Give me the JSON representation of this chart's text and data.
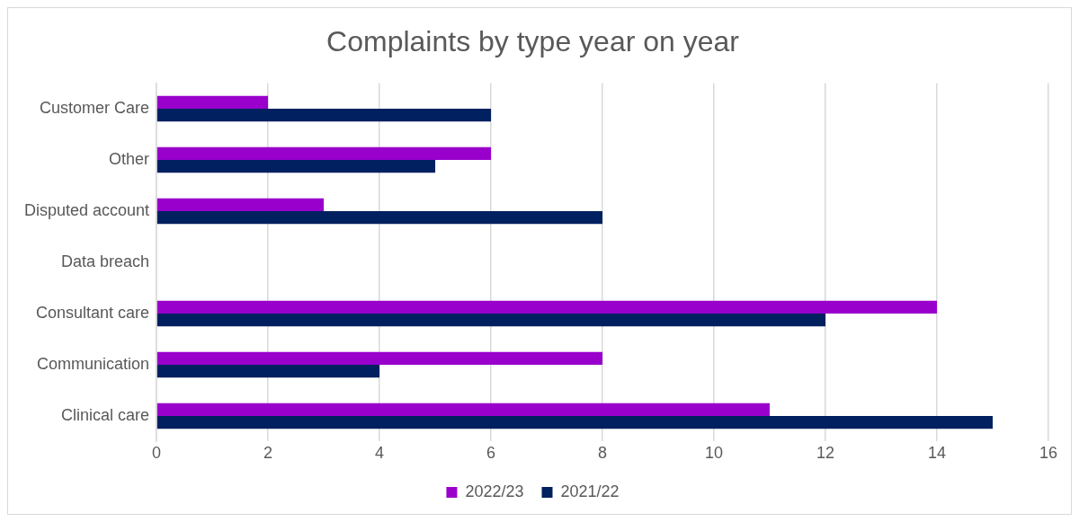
{
  "chart_data": {
    "type": "bar",
    "orientation": "horizontal",
    "title": "Complaints by type year on year",
    "categories": [
      "Customer Care",
      "Other",
      "Disputed account",
      "Data breach",
      "Consultant care",
      "Communication",
      "Clinical care"
    ],
    "series": [
      {
        "name": "2022/23",
        "color": "#9900cc",
        "values": [
          2,
          6,
          3,
          0,
          14,
          8,
          11
        ]
      },
      {
        "name": "2021/22",
        "color": "#002060",
        "values": [
          6,
          5,
          8,
          0,
          12,
          4,
          15
        ]
      }
    ],
    "xlim": [
      0,
      16
    ],
    "xticks": [
      0,
      2,
      4,
      6,
      8,
      10,
      12,
      14,
      16
    ],
    "grid": "x",
    "legend": "bottom"
  }
}
